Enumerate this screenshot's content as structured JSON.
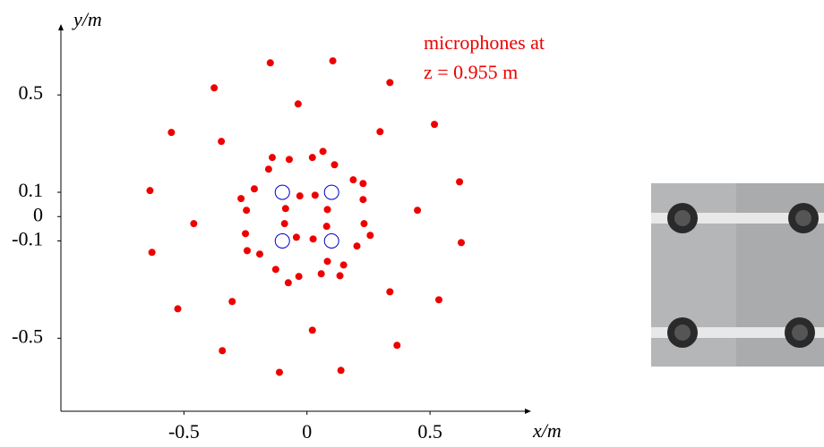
{
  "chart_data": {
    "type": "scatter",
    "xlabel": "x/m",
    "ylabel": "y/m",
    "annotation": [
      "microphones at",
      "z = 0.955 m"
    ],
    "annotation_color": "#ee0000",
    "xlim": [
      -1,
      0.9
    ],
    "ylim": [
      -0.8,
      0.78
    ],
    "xticks": [
      -0.5,
      0,
      0.5
    ],
    "yticks": [
      0.5,
      0.1,
      0,
      -0.1,
      -0.5
    ],
    "series": [
      {
        "color": "#ee0000",
        "marker": "filled",
        "x": [
          -0.149,
          0.105,
          -0.377,
          0.337,
          -0.036,
          0.518,
          -0.551,
          0.297,
          -0.348,
          -0.141,
          -0.072,
          0.022,
          0.065,
          0.112,
          -0.156,
          0.188,
          0.228,
          -0.638,
          0.62,
          -0.214,
          -0.268,
          -0.029,
          0.033,
          0.228,
          -0.246,
          -0.087,
          0.083,
          -0.46,
          -0.091,
          0.08,
          0.232,
          0.449,
          -0.25,
          0.257,
          -0.043,
          0.025,
          -0.63,
          0.627,
          -0.243,
          -0.192,
          0.203,
          -0.127,
          -0.076,
          -0.033,
          0.058,
          0.083,
          0.149,
          0.134,
          0.337,
          -0.304,
          0.536,
          -0.525,
          0.022,
          -0.344,
          0.366,
          -0.112,
          0.138
        ],
        "values": [
          0.632,
          0.64,
          0.529,
          0.551,
          0.463,
          0.379,
          0.346,
          0.349,
          0.309,
          0.243,
          0.235,
          0.243,
          0.268,
          0.213,
          0.195,
          0.151,
          0.136,
          0.107,
          0.143,
          0.114,
          0.074,
          0.085,
          0.088,
          0.07,
          0.026,
          0.033,
          0.029,
          -0.029,
          -0.029,
          -0.04,
          -0.029,
          0.026,
          -0.07,
          -0.077,
          -0.085,
          -0.092,
          -0.147,
          -0.107,
          -0.14,
          -0.154,
          -0.121,
          -0.217,
          -0.272,
          -0.246,
          -0.235,
          -0.184,
          -0.199,
          -0.243,
          -0.309,
          -0.349,
          -0.342,
          -0.379,
          -0.467,
          -0.551,
          -0.529,
          -0.64,
          -0.632
        ]
      },
      {
        "color": "#0000cc",
        "marker": "open",
        "x": [
          -0.1,
          0.1,
          -0.1,
          0.1
        ],
        "values": [
          0.1,
          0.1,
          -0.1,
          -0.1
        ]
      }
    ]
  }
}
